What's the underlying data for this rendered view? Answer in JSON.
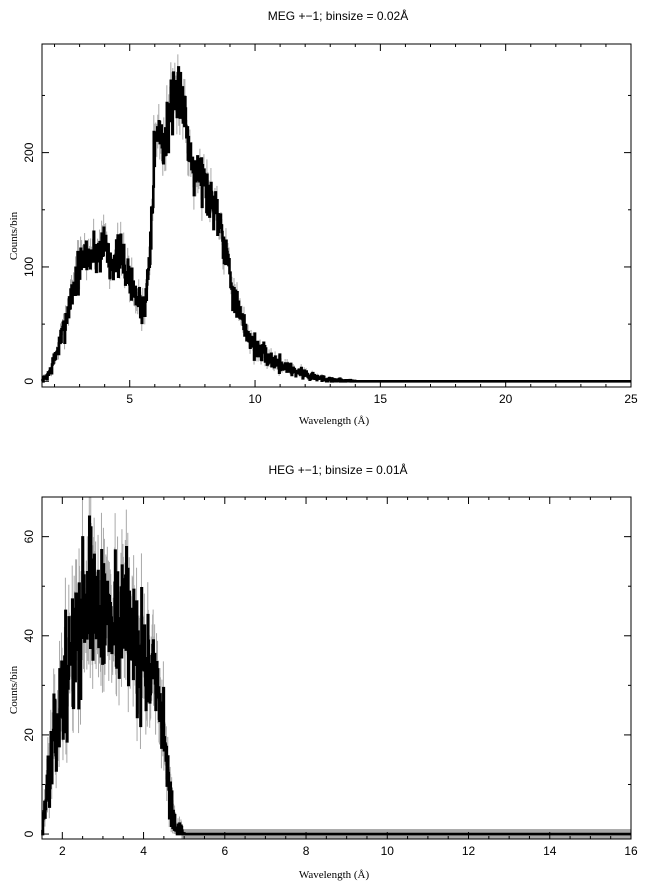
{
  "chart_data": [
    {
      "type": "line",
      "title": "MEG +−1; binsize = 0.02Å",
      "xlabel": "Wavelength (Å)",
      "ylabel": "Counts/bin",
      "xlim": [
        1.5,
        25
      ],
      "ylim": [
        -5,
        295
      ],
      "xticks": [
        5,
        10,
        15,
        20,
        25
      ],
      "yticks": [
        0,
        100,
        200
      ],
      "x_tick_labels": [
        "5",
        "10",
        "15",
        "20",
        "25"
      ],
      "y_tick_labels": [
        "0",
        "100",
        "200"
      ],
      "grid": false,
      "legend": "none",
      "series": [
        {
          "x": [
            1.5,
            1.8,
            2.0,
            2.3,
            2.6,
            2.9,
            3.2,
            3.5,
            3.8,
            4.0,
            4.2,
            4.5,
            4.8,
            5.0,
            5.3,
            5.6,
            5.8,
            6.0,
            6.2,
            6.4,
            6.6,
            6.8,
            7.0,
            7.2,
            7.4,
            7.6,
            7.8,
            8.0,
            8.2,
            8.4,
            8.6,
            8.8,
            9.0,
            9.2,
            9.5,
            9.8,
            10.0,
            10.5,
            11.0,
            11.5,
            12.0,
            12.5,
            13.0,
            13.5,
            14.0,
            15.0,
            17.0,
            20.0,
            25.0
          ],
          "y": [
            0,
            8,
            20,
            40,
            70,
            95,
            110,
            112,
            113,
            125,
            105,
            110,
            102,
            85,
            72,
            62,
            120,
            210,
            220,
            205,
            240,
            235,
            262,
            230,
            200,
            190,
            185,
            170,
            160,
            155,
            140,
            120,
            95,
            70,
            50,
            38,
            30,
            20,
            15,
            10,
            6,
            3,
            1.5,
            0.5,
            0,
            0,
            0,
            0,
            0
          ]
        }
      ]
    },
    {
      "type": "line",
      "title": "HEG +−1; binsize = 0.01Å",
      "xlabel": "Wavelength (Å)",
      "ylabel": "Counts/bin",
      "xlim": [
        1.5,
        16
      ],
      "ylim": [
        -1,
        68
      ],
      "xticks": [
        2,
        4,
        6,
        8,
        10,
        12,
        14,
        16
      ],
      "yticks": [
        0,
        20,
        40,
        60
      ],
      "x_tick_labels": [
        "2",
        "4",
        "6",
        "8",
        "10",
        "12",
        "14",
        "16"
      ],
      "y_tick_labels": [
        "0",
        "20",
        "40",
        "60"
      ],
      "grid": false,
      "legend": "none",
      "series": [
        {
          "x": [
            1.5,
            1.6,
            1.7,
            1.8,
            1.9,
            2.0,
            2.1,
            2.2,
            2.3,
            2.4,
            2.5,
            2.6,
            2.7,
            2.8,
            2.9,
            3.0,
            3.1,
            3.2,
            3.3,
            3.4,
            3.5,
            3.6,
            3.7,
            3.8,
            3.9,
            4.0,
            4.1,
            4.2,
            4.3,
            4.4,
            4.5,
            4.6,
            4.7,
            4.8,
            5.0,
            6.0,
            8.0,
            10.0,
            12.0,
            14.0,
            16.0
          ],
          "y": [
            1,
            8,
            14,
            18,
            24,
            28,
            32,
            35,
            38,
            42,
            45,
            48,
            50,
            47,
            44,
            43,
            46,
            48,
            44,
            42,
            45,
            44,
            41,
            40,
            38,
            35,
            34,
            32,
            28,
            24,
            18,
            12,
            5,
            1,
            0,
            0,
            0,
            0,
            0,
            0,
            0
          ]
        }
      ]
    }
  ]
}
